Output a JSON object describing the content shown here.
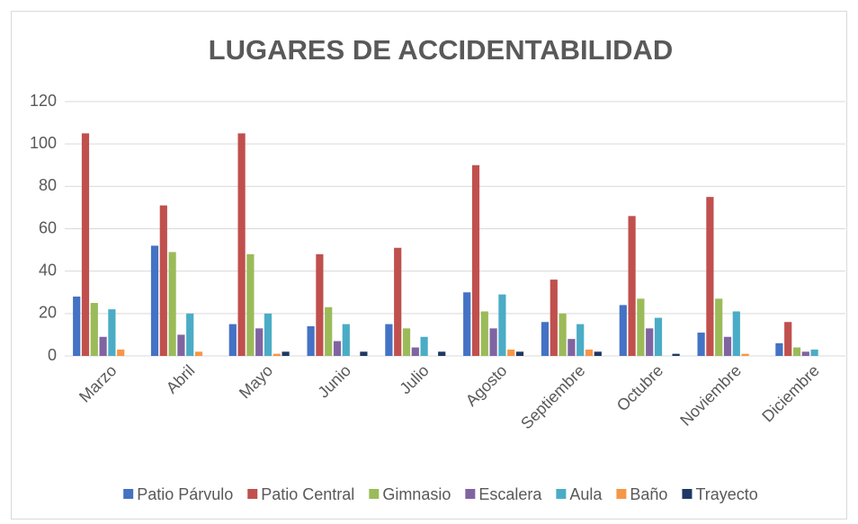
{
  "chart_data": {
    "type": "bar",
    "title": "LUGARES DE ACCIDENTABILIDAD",
    "categories": [
      "Marzo",
      "Abril",
      "Mayo",
      "Junio",
      "Julio",
      "Agosto",
      "Septiembre",
      "Octubre",
      "Noviembre",
      "Diciembre"
    ],
    "series": [
      {
        "name": "Patio Párvulo",
        "color": "#4472c4",
        "values": [
          28,
          52,
          15,
          14,
          15,
          30,
          16,
          24,
          11,
          6
        ]
      },
      {
        "name": "Patio Central",
        "color": "#c0504d",
        "values": [
          105,
          71,
          105,
          48,
          51,
          90,
          36,
          66,
          75,
          16
        ]
      },
      {
        "name": "Gimnasio",
        "color": "#9bbb59",
        "values": [
          25,
          49,
          48,
          23,
          13,
          21,
          20,
          27,
          27,
          4
        ]
      },
      {
        "name": "Escalera",
        "color": "#8064a2",
        "values": [
          9,
          10,
          13,
          7,
          4,
          13,
          8,
          13,
          9,
          2
        ]
      },
      {
        "name": "Aula",
        "color": "#4bacc6",
        "values": [
          22,
          20,
          20,
          15,
          9,
          29,
          15,
          18,
          21,
          3
        ]
      },
      {
        "name": "Baño",
        "color": "#f79646",
        "values": [
          3,
          2,
          1,
          0,
          0,
          3,
          3,
          0,
          1,
          0
        ]
      },
      {
        "name": "Trayecto",
        "color": "#1f3864",
        "values": [
          0,
          0,
          2,
          2,
          2,
          2,
          2,
          1,
          0,
          0
        ]
      }
    ],
    "ylim": [
      0,
      120
    ],
    "yticks": [
      0,
      20,
      40,
      60,
      80,
      100,
      120
    ],
    "grid": true,
    "legend": "bottom"
  }
}
